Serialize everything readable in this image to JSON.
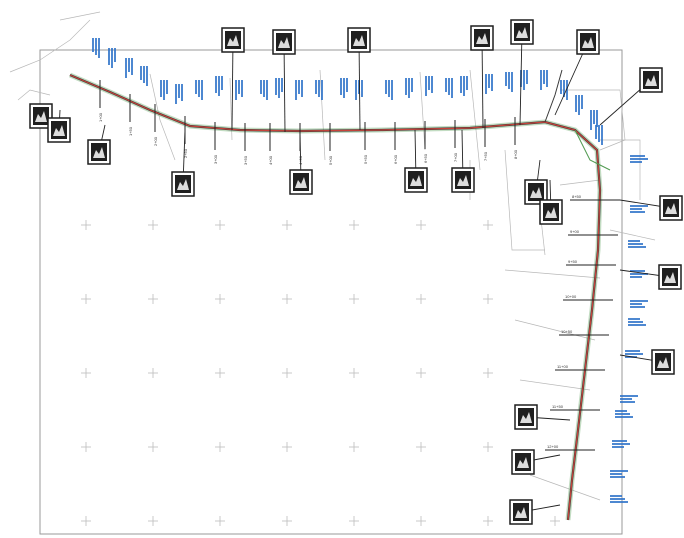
{
  "drawing": {
    "background_color": "#ffffff",
    "frame_color": "#9a9a9a",
    "grid_cross_color": "#bdbdbd",
    "route_red_color": "#c8433a",
    "route_dark_color": "#3a3a3a",
    "route_green_color": "#4f9a4f",
    "callout_blue_color": "#2f73c9",
    "thumb_dark_color": "#1f1f1f",
    "sheet_outline_color": "#b8b8b8"
  },
  "stationing": {
    "text_color": "#333333",
    "ticks": [
      {
        "text": "1+00"
      },
      {
        "text": "1+50"
      },
      {
        "text": "2+00"
      },
      {
        "text": "2+50"
      },
      {
        "text": "3+00"
      },
      {
        "text": "3+50"
      },
      {
        "text": "4+00"
      },
      {
        "text": "4+50"
      },
      {
        "text": "5+00"
      },
      {
        "text": "5+50"
      },
      {
        "text": "6+00"
      },
      {
        "text": "6+50"
      },
      {
        "text": "7+00"
      },
      {
        "text": "7+50"
      },
      {
        "text": "8+00"
      },
      {
        "text": "8+50"
      },
      {
        "text": "9+00"
      },
      {
        "text": "9+50"
      },
      {
        "text": "10+00"
      },
      {
        "text": "10+50"
      },
      {
        "text": "11+00"
      },
      {
        "text": "11+50"
      },
      {
        "text": "12+00"
      }
    ]
  }
}
